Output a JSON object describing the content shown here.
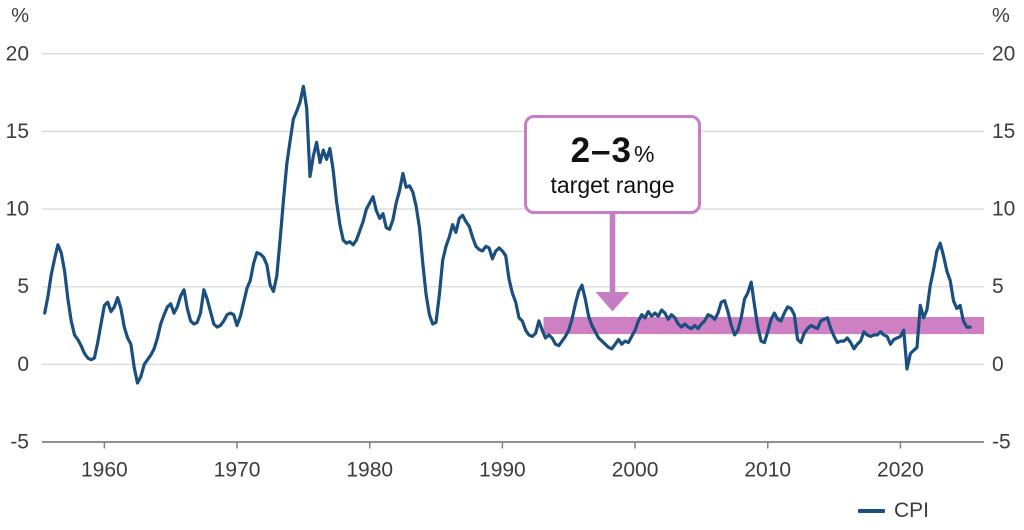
{
  "chart_data": {
    "type": "line",
    "title": "",
    "unit": "%",
    "x_domain": [
      1955.3,
      2026.3
    ],
    "ylim": [
      -5,
      20
    ],
    "yticks": [
      -5,
      0,
      5,
      10,
      15,
      20
    ],
    "xticks": [
      1960,
      1970,
      1980,
      1990,
      2000,
      2010,
      2020
    ],
    "grid": true,
    "legend_position": "bottom-right",
    "series": [
      {
        "name": "CPI",
        "color": "#1a4f80",
        "start_year": 1955.5,
        "step_years": 0.25,
        "values": [
          3.3,
          4.4,
          5.8,
          6.8,
          7.7,
          7.2,
          6.0,
          4.2,
          2.8,
          1.9,
          1.6,
          1.2,
          0.7,
          0.4,
          0.3,
          0.4,
          1.4,
          2.6,
          3.8,
          4.0,
          3.4,
          3.7,
          4.3,
          3.6,
          2.4,
          1.7,
          1.3,
          -0.2,
          -1.2,
          -0.8,
          0.0,
          0.3,
          0.6,
          1.0,
          1.7,
          2.6,
          3.2,
          3.7,
          3.9,
          3.3,
          3.7,
          4.4,
          4.8,
          3.6,
          2.8,
          2.6,
          2.7,
          3.3,
          4.8,
          4.2,
          3.4,
          2.6,
          2.4,
          2.5,
          2.8,
          3.2,
          3.3,
          3.2,
          2.5,
          3.1,
          4.0,
          4.9,
          5.4,
          6.5,
          7.2,
          7.1,
          6.9,
          6.4,
          5.1,
          4.7,
          5.7,
          8.1,
          10.6,
          12.9,
          14.4,
          15.8,
          16.3,
          16.9,
          17.9,
          16.5,
          12.1,
          13.4,
          14.3,
          13.0,
          13.8,
          13.2,
          13.9,
          12.5,
          10.5,
          9.0,
          8.0,
          7.8,
          7.9,
          7.7,
          8.0,
          8.6,
          9.2,
          10.0,
          10.4,
          10.8,
          9.9,
          9.4,
          9.7,
          8.8,
          8.7,
          9.3,
          10.4,
          11.2,
          12.3,
          11.4,
          11.5,
          11.1,
          10.2,
          8.8,
          6.5,
          4.5,
          3.2,
          2.6,
          2.7,
          4.5,
          6.7,
          7.6,
          8.2,
          9.0,
          8.5,
          9.4,
          9.6,
          9.2,
          8.9,
          8.2,
          7.6,
          7.4,
          7.3,
          7.6,
          7.5,
          6.8,
          7.3,
          7.5,
          7.3,
          7.0,
          5.5,
          4.6,
          4.0,
          3.0,
          2.8,
          2.2,
          1.9,
          1.8,
          2.0,
          2.8,
          2.2,
          1.7,
          1.9,
          1.7,
          1.3,
          1.2,
          1.5,
          1.8,
          2.2,
          2.9,
          3.9,
          4.7,
          5.1,
          4.2,
          3.1,
          2.5,
          2.1,
          1.7,
          1.5,
          1.3,
          1.1,
          1.0,
          1.3,
          1.6,
          1.3,
          1.5,
          1.4,
          1.8,
          2.2,
          2.8,
          3.2,
          3.0,
          3.4,
          3.1,
          3.3,
          3.1,
          3.5,
          3.3,
          2.9,
          3.2,
          3.0,
          2.6,
          2.4,
          2.6,
          2.4,
          2.3,
          2.5,
          2.3,
          2.6,
          2.8,
          3.2,
          3.1,
          2.9,
          3.3,
          4.0,
          4.1,
          3.4,
          2.5,
          1.9,
          2.2,
          3.0,
          4.2,
          4.6,
          5.3,
          3.8,
          2.4,
          1.5,
          1.4,
          2.1,
          2.9,
          3.3,
          2.9,
          2.8,
          3.3,
          3.7,
          3.6,
          3.2,
          1.6,
          1.4,
          2.0,
          2.3,
          2.5,
          2.4,
          2.3,
          2.8,
          2.9,
          3.0,
          2.3,
          1.8,
          1.4,
          1.5,
          1.5,
          1.7,
          1.4,
          1.0,
          1.3,
          1.5,
          2.1,
          1.9,
          1.8,
          1.9,
          1.9,
          2.1,
          1.9,
          1.8,
          1.3,
          1.6,
          1.7,
          1.8,
          2.2,
          -0.3,
          0.7,
          0.9,
          1.1,
          3.8,
          3.0,
          3.5,
          5.1,
          6.1,
          7.3,
          7.8,
          7.0,
          6.0,
          5.4,
          4.1,
          3.6,
          3.8,
          2.8,
          2.4,
          2.4
        ]
      }
    ],
    "target_band": {
      "min": 2,
      "max": 3,
      "start_year": 1993.1,
      "color": "#ce80c2",
      "border_color": "#c67ec2",
      "label_range": "2–3",
      "label_unit": "%",
      "label_text": "target range"
    }
  },
  "legend": {
    "cpi_label": "CPI"
  }
}
